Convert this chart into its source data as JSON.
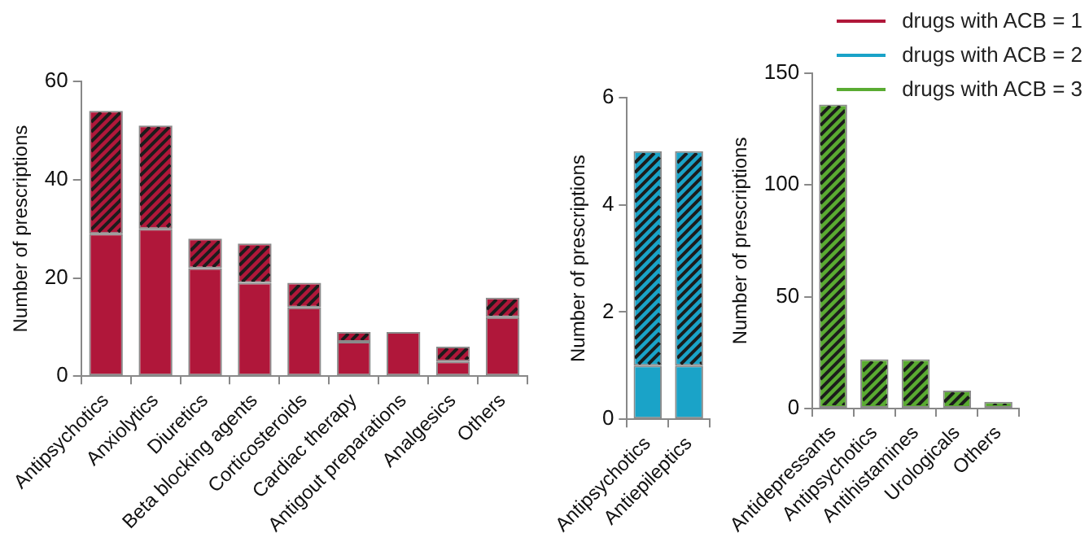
{
  "chart_data": [
    {
      "type": "bar",
      "ylabel": "Number of prescriptions",
      "categories": [
        "Antipsychotics",
        "Anxiolytics",
        "Diuretics",
        "Beta blocking agents",
        "Corticosteroids",
        "Cardiac therapy",
        "Antigout preparations",
        "Analgesics",
        "Others"
      ],
      "stacked": true,
      "series": [
        {
          "name": "drugs with ACB = 1",
          "color": "#b0173a",
          "values": [
            29,
            30,
            22,
            19,
            14,
            7,
            9,
            3,
            12
          ]
        },
        {
          "color": "#b0173a",
          "values": [
            25,
            21,
            6,
            8,
            5,
            2,
            0,
            3,
            4
          ]
        }
      ],
      "ylim": [
        0,
        60
      ],
      "yticks": [
        0,
        20,
        40,
        60
      ],
      "grid": false
    },
    {
      "type": "bar",
      "ylabel": "Number of prescriptions",
      "categories": [
        "Antipsychotics",
        "Antiepileptics"
      ],
      "stacked": true,
      "series": [
        {
          "name": "drugs with ACB = 2",
          "color": "#1aa3c8",
          "values": [
            1,
            1
          ]
        },
        {
          "color": "#1aa3c8",
          "values": [
            4,
            4
          ]
        }
      ],
      "ylim": [
        0,
        6
      ],
      "yticks": [
        0,
        2,
        4,
        6
      ],
      "grid": false
    },
    {
      "type": "bar",
      "ylabel": "Number of prescriptions",
      "categories": [
        "Antidepressants",
        "Antipsychotics",
        "Antihistamines",
        "Urologicals",
        "Others"
      ],
      "series": [
        {
          "name": "drugs with ACB = 3",
          "color": "#5aab32",
          "values": [
            136,
            22,
            22,
            8,
            3
          ]
        }
      ],
      "ylim": [
        0,
        150
      ],
      "yticks": [
        0,
        50,
        100,
        150
      ],
      "grid": false,
      "legend": "top right"
    }
  ]
}
